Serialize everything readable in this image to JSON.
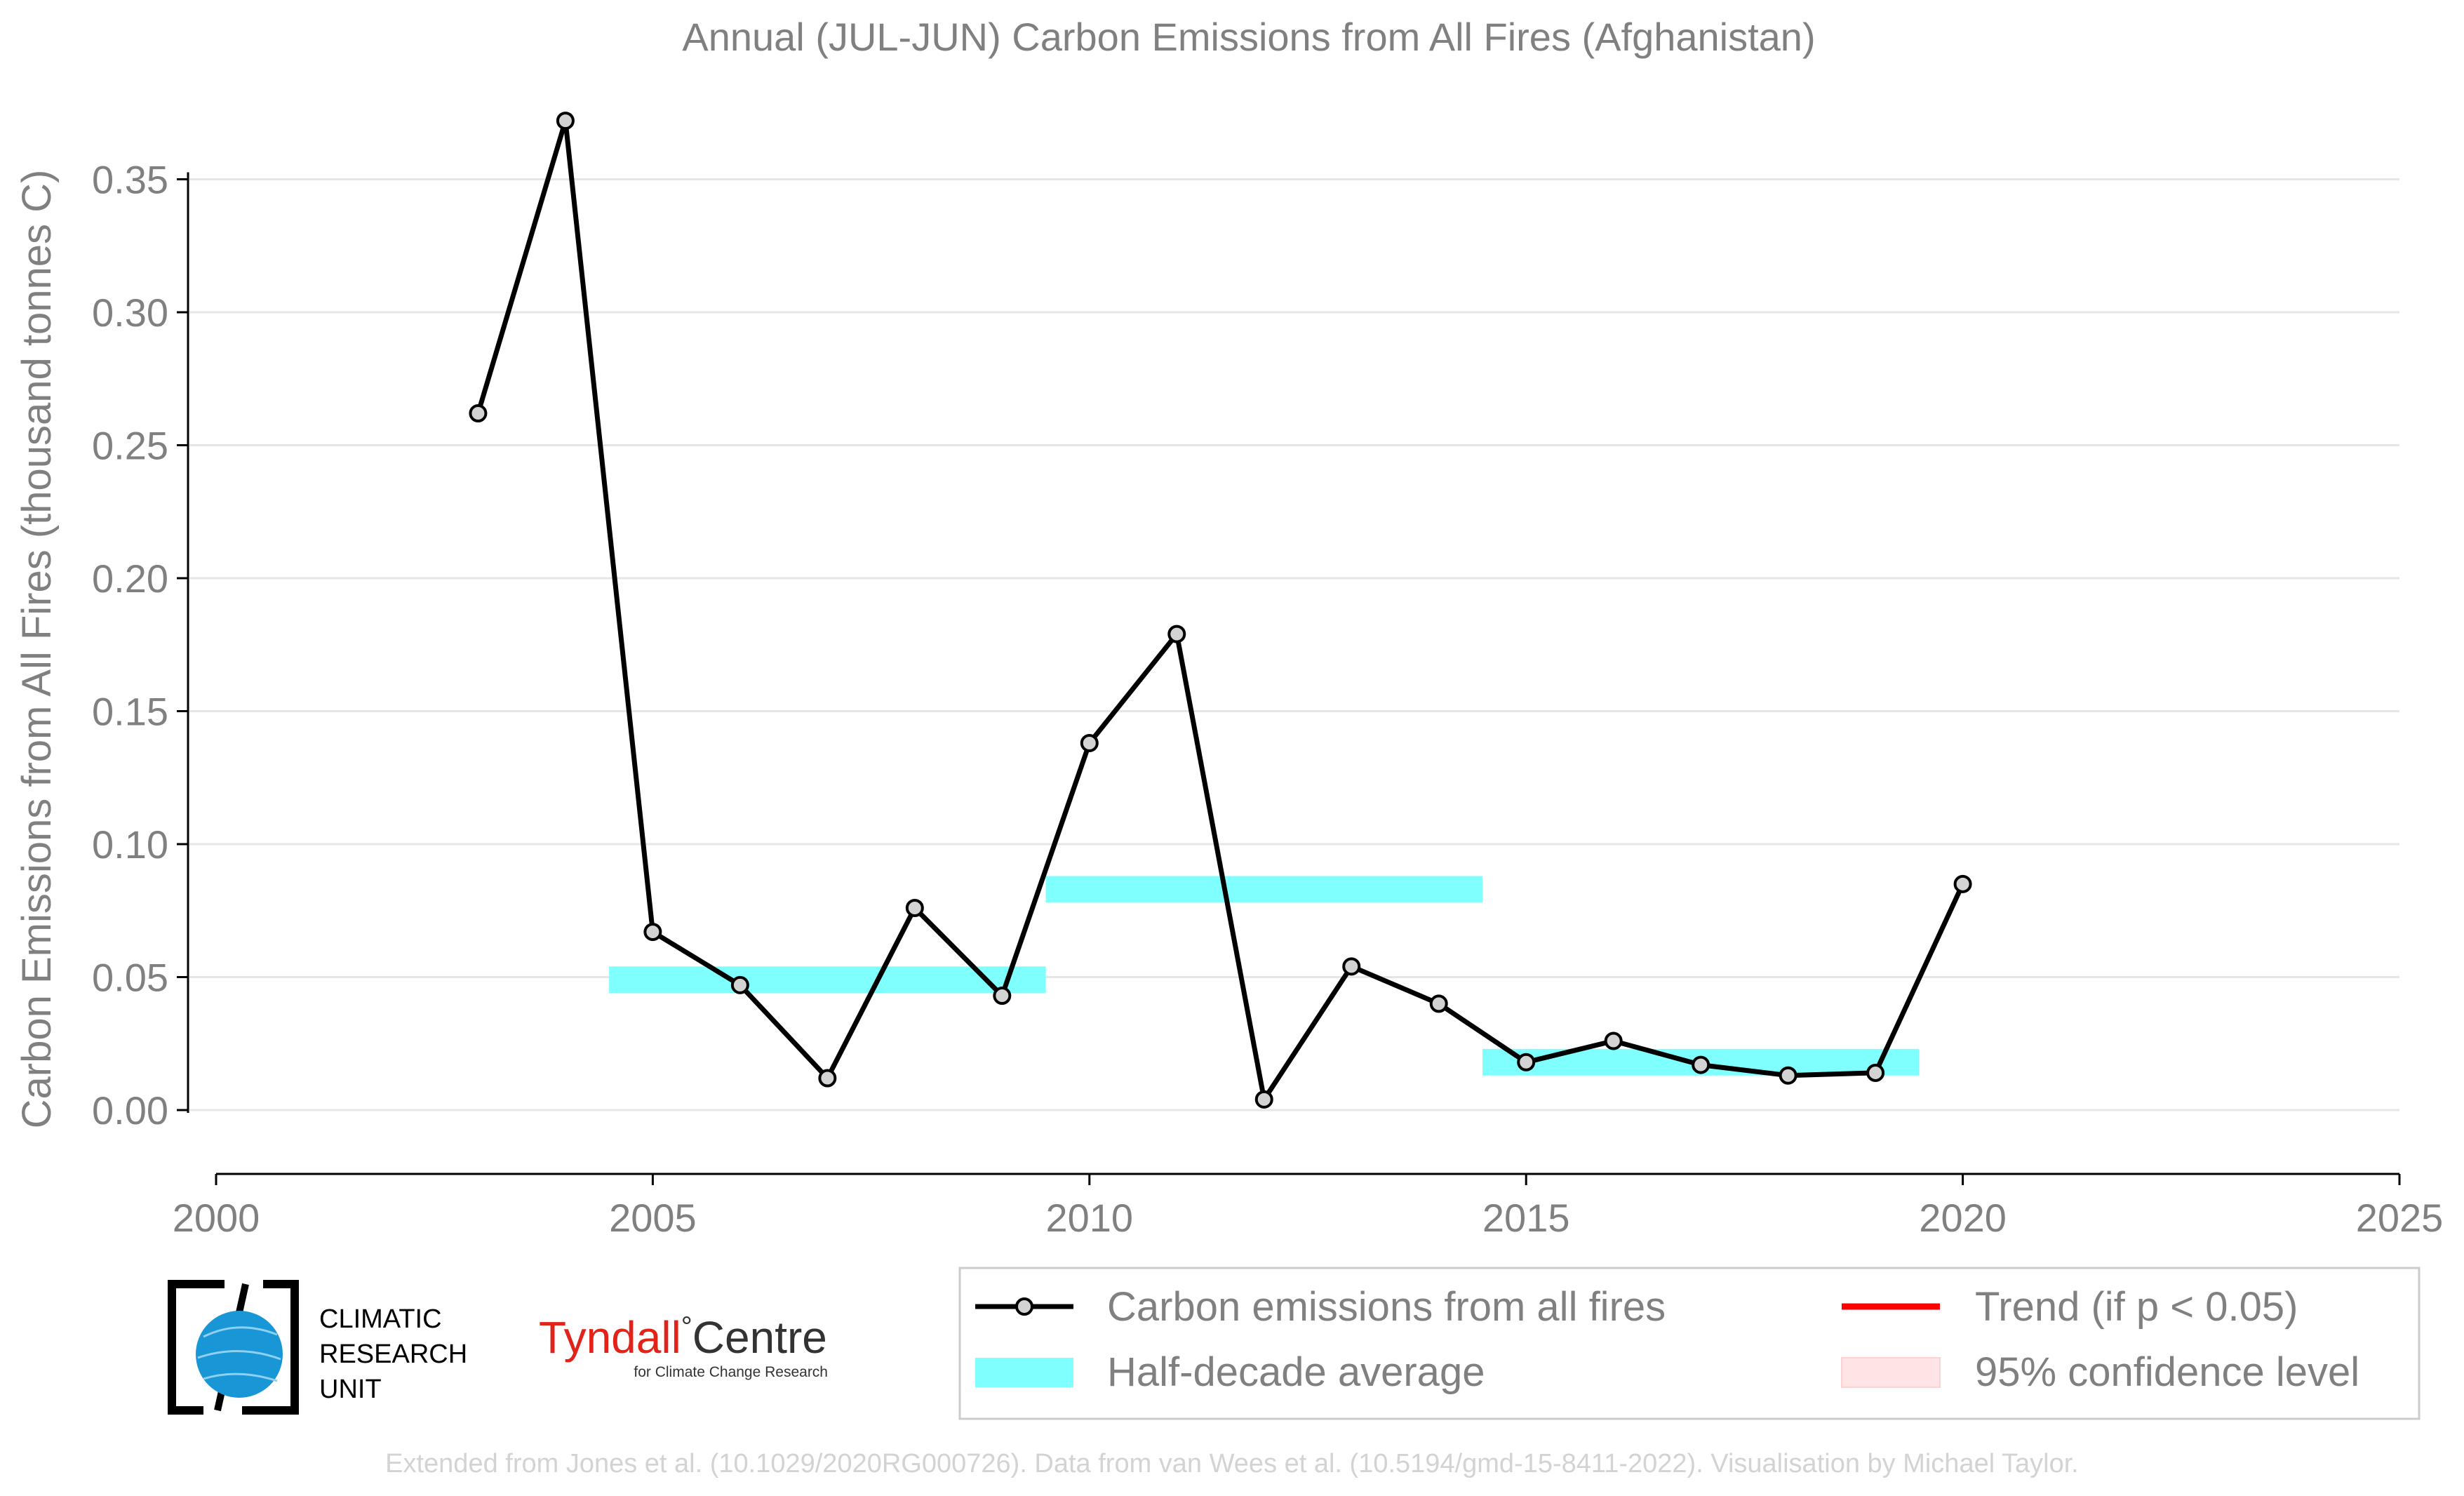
{
  "chart_data": {
    "type": "line",
    "title": "Annual (JUL-JUN) Carbon Emissions from All Fires (Afghanistan)",
    "xlabel": "",
    "ylabel": "Carbon Emissions from All Fires (thousand tonnes C)",
    "xlim": [
      2000,
      2025
    ],
    "ylim": [
      -0.025,
      0.375
    ],
    "xticks": [
      2000,
      2005,
      2010,
      2015,
      2020,
      2025
    ],
    "yticks": [
      0.0,
      0.05,
      0.1,
      0.15,
      0.2,
      0.25,
      0.3,
      0.35
    ],
    "xtick_labels": [
      "2000",
      "2005",
      "2010",
      "2015",
      "2020",
      "2025"
    ],
    "ytick_labels": [
      "0.00",
      "0.05",
      "0.10",
      "0.15",
      "0.20",
      "0.25",
      "0.30",
      "0.35"
    ],
    "grid": "horizontal",
    "series": [
      {
        "name": "Carbon emissions from all fires",
        "color": "#000000",
        "x": [
          2003,
          2004,
          2005,
          2006,
          2007,
          2008,
          2009,
          2010,
          2011,
          2012,
          2013,
          2014,
          2015,
          2016,
          2017,
          2018,
          2019,
          2020
        ],
        "values": [
          0.262,
          0.372,
          0.067,
          0.047,
          0.012,
          0.076,
          0.043,
          0.138,
          0.179,
          0.004,
          0.054,
          0.04,
          0.018,
          0.026,
          0.017,
          0.013,
          0.014,
          0.085
        ]
      }
    ],
    "half_decade_average": {
      "name": "Half-decade average",
      "color": "#80ffff",
      "segments": [
        {
          "x_start": 2004.5,
          "x_end": 2009.5,
          "low": 0.044,
          "high": 0.054
        },
        {
          "x_start": 2009.5,
          "x_end": 2014.5,
          "low": 0.078,
          "high": 0.088
        },
        {
          "x_start": 2014.5,
          "x_end": 2019.5,
          "low": 0.013,
          "high": 0.023
        }
      ]
    },
    "legend": {
      "placement": "bottom-right",
      "entries": [
        {
          "label": "Carbon emissions from all fires",
          "kind": "line-marker",
          "color": "#000000"
        },
        {
          "label": "Trend (if p < 0.05)",
          "kind": "line",
          "color": "#ff0000"
        },
        {
          "label": "Half-decade average",
          "kind": "patch",
          "color": "#80ffff"
        },
        {
          "label": "95% confidence level",
          "kind": "patch",
          "color": "#ffe4e6"
        }
      ]
    }
  },
  "logos": {
    "cru_lines": [
      "CLIMATIC",
      "RESEARCH",
      "UNIT"
    ],
    "tyndall_word": "Tyndall",
    "tyndall_deg": "°",
    "tyndall_centre": "Centre",
    "tyndall_sub": "for Climate Change Research"
  },
  "footer": "Extended from Jones et al. (10.1029/2020RG000726). Data from van Wees et al. (10.5194/gmd-15-8411-2022). Visualisation by Michael Taylor."
}
